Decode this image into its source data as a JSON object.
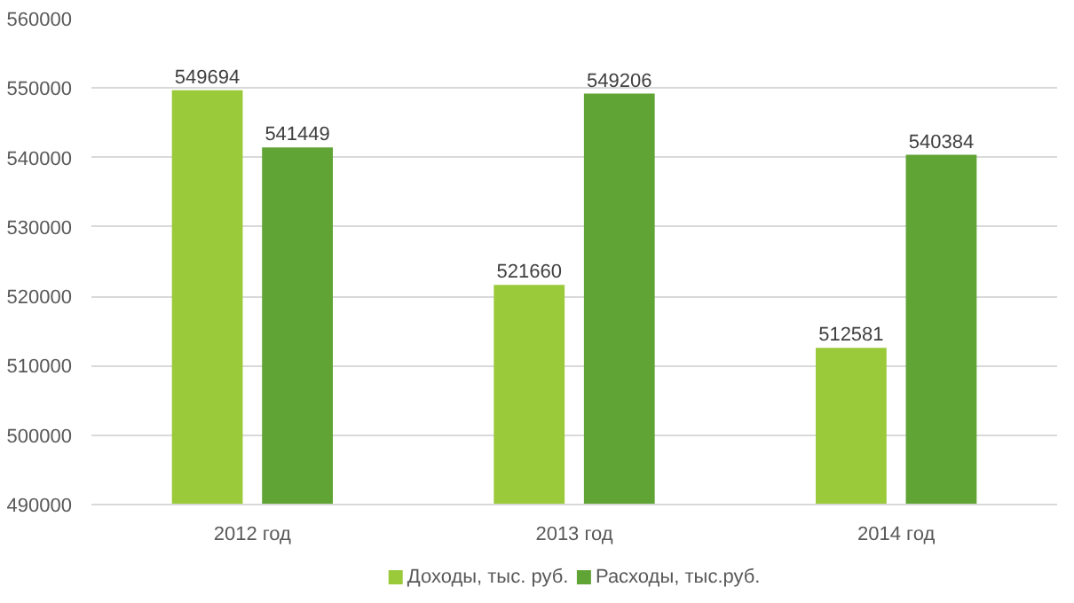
{
  "chart_data": {
    "type": "bar",
    "categories": [
      "2012 год",
      "2013 год",
      "2014 год"
    ],
    "series": [
      {
        "name": "Доходы, тыс. руб.",
        "color": "#9aca3a",
        "values": [
          549694,
          521660,
          512581
        ]
      },
      {
        "name": "Расходы, тыс.руб.",
        "color": "#61a436",
        "values": [
          541449,
          549206,
          540384
        ]
      }
    ],
    "ylim": [
      490000,
      560000
    ],
    "yticks": [
      490000,
      500000,
      510000,
      520000,
      530000,
      540000,
      550000,
      560000
    ],
    "grid": "y",
    "legend": "bottom",
    "data_labels": true
  }
}
